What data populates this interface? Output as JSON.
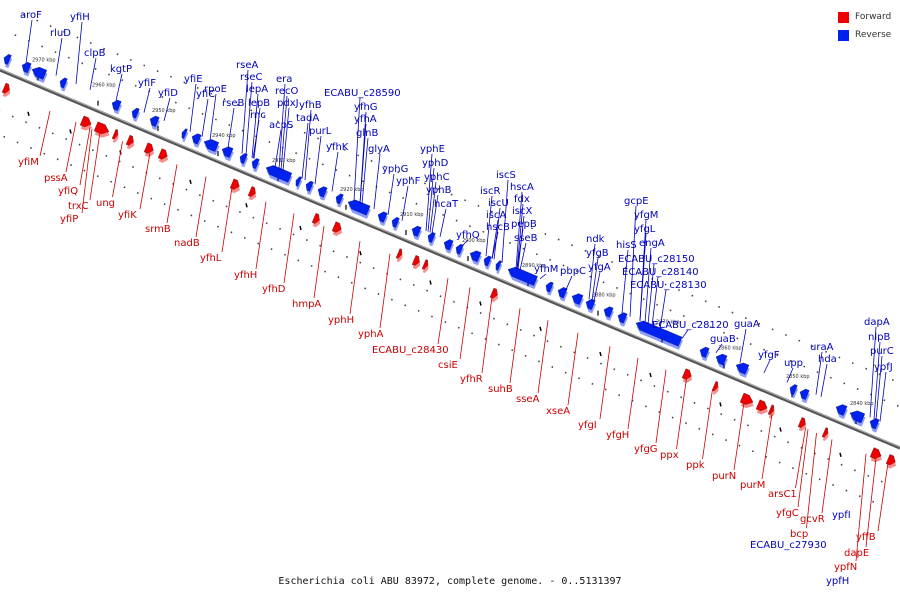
{
  "legend": {
    "forward": {
      "label": "Forward",
      "color": "#ee0000"
    },
    "reverse": {
      "label": "Reverse",
      "color": "#0022ee"
    }
  },
  "footer": "Escherichia coli ABU 83972, complete genome. - 0..5131397",
  "colors": {
    "forward": "#ee0000",
    "reverse": "#0022ee",
    "label_forward": "#cc0000",
    "label_reverse": "#0000bb",
    "axis": "#888888"
  },
  "ticks": [
    "2970 kbp",
    "2960 kbp",
    "2950 kbp",
    "2940 kbp",
    "2930 kbp",
    "2920 kbp",
    "2910 kbp",
    "2900 kbp",
    "2890 kbp",
    "2880 kbp",
    "2870 kbp",
    "2860 kbp",
    "2850 kbp",
    "2840 kbp"
  ],
  "reverse_genes": [
    "aroF",
    "yfiH",
    "rluD",
    "clpB",
    "kgtP",
    "yfiF",
    "yfiD",
    "yfiE",
    "yfiC",
    "rpoE",
    "rseB",
    "rseA",
    "rseC",
    "lepA",
    "lepB",
    "rnc",
    "era",
    "recO",
    "pdxJ",
    "acpS",
    "yfhB",
    "tadA",
    "purL",
    "ECABU_c28590",
    "yfhG",
    "yfhA",
    "glnB",
    "yfhK",
    "glyA",
    "yphG",
    "yphF",
    "yphE",
    "yphD",
    "yphC",
    "yphB",
    "hcaT",
    "yfhQ",
    "iscR",
    "hscB",
    "iscA",
    "iscU",
    "iscS",
    "hscA",
    "fdx",
    "iscX",
    "pepB",
    "sseB",
    "yfhM",
    "pbpC",
    "yfgA",
    "yfgB",
    "ndk",
    "hisS",
    "yfgL",
    "yfgM",
    "gcpE",
    "engA",
    "ECABU_c28150",
    "ECABU_c28140",
    "ECABU_c28130",
    "ECABU_c28120",
    "guaB",
    "guaA",
    "yfgF",
    "upp",
    "uraA",
    "hda",
    "dapA",
    "nlpB",
    "purC",
    "ypfJ",
    "ypfI",
    "ECABU_c27930",
    "ypfH"
  ],
  "forward_genes": [
    "yfiM",
    "pssA",
    "yfiQ",
    "trxC",
    "yfiP",
    "ung",
    "yfiK",
    "srmB",
    "nadB",
    "yfhL",
    "yfhH",
    "yfhD",
    "hmpA",
    "yphH",
    "yphA",
    "ECABU_c28430",
    "csiE",
    "yfhR",
    "suhB",
    "sseA",
    "xseA",
    "yfgI",
    "yfgH",
    "yfgG",
    "ppx",
    "ppk",
    "purN",
    "purM",
    "arsC1",
    "yfgC",
    "bcp",
    "gcvR",
    "dapE",
    "ypfN",
    "yffB"
  ]
}
